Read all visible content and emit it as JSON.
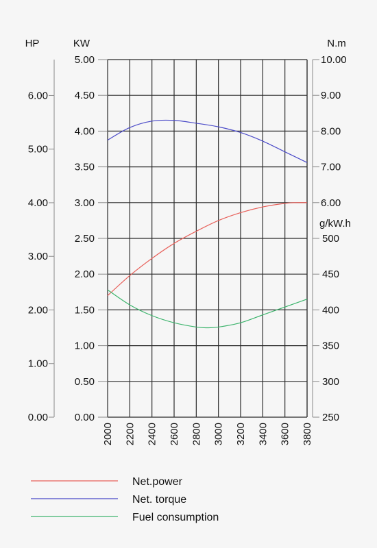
{
  "chart_data": {
    "type": "line",
    "axes": {
      "hp": {
        "label": "HP",
        "ticks": [
          "0.00",
          "1.00",
          "2.00",
          "3.00",
          "4.00",
          "5.00",
          "6.00"
        ],
        "range": [
          0,
          6.67
        ]
      },
      "kw": {
        "label": "KW",
        "ticks": [
          "0.00",
          "0.50",
          "1.00",
          "1.50",
          "2.00",
          "2.50",
          "3.00",
          "3.50",
          "4.00",
          "4.50",
          "5.00"
        ],
        "range": [
          0,
          5
        ]
      },
      "torque": {
        "label": "N.m",
        "ticks": [
          "6.00",
          "7.00",
          "8.00",
          "9.00",
          "10.00"
        ],
        "range": [
          6,
          10
        ]
      },
      "fuel": {
        "label": "g/kW.h",
        "ticks": [
          "250",
          "300",
          "350",
          "400",
          "450",
          "500"
        ],
        "range": [
          250,
          500
        ]
      },
      "rpm": {
        "ticks": [
          "2000",
          "2200",
          "2400",
          "2600",
          "2800",
          "3000",
          "3200",
          "3400",
          "3600",
          "3800"
        ],
        "range": [
          2000,
          3800
        ]
      }
    },
    "series": [
      {
        "name": "Net.power",
        "axis": "kw",
        "color": "#e8605a",
        "x": [
          2000,
          2200,
          2400,
          2600,
          2800,
          3000,
          3200,
          3400,
          3600,
          3700,
          3800
        ],
        "values": [
          1.7,
          1.98,
          2.22,
          2.43,
          2.6,
          2.75,
          2.86,
          2.94,
          2.99,
          3.0,
          3.0
        ]
      },
      {
        "name": "Net. torque",
        "axis": "torque",
        "color": "#4a4ac8",
        "x": [
          2000,
          2200,
          2400,
          2600,
          2800,
          3000,
          3200,
          3400,
          3600,
          3800
        ],
        "values": [
          7.75,
          8.1,
          8.28,
          8.3,
          8.22,
          8.12,
          7.96,
          7.72,
          7.42,
          7.12
        ]
      },
      {
        "name": "Fuel consumption",
        "axis": "fuel",
        "color": "#3cb46c",
        "x": [
          2000,
          2200,
          2400,
          2600,
          2800,
          2900,
          3000,
          3200,
          3400,
          3600,
          3800
        ],
        "values": [
          428,
          407,
          392,
          382,
          376,
          375,
          376,
          382,
          393,
          404,
          415
        ]
      }
    ]
  }
}
